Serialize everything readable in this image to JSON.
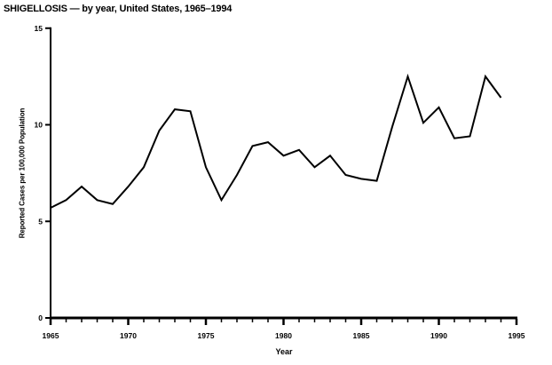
{
  "chart_data": {
    "type": "line",
    "title": "SHIGELLOSIS — by year, United States, 1965–1994",
    "xlabel": "Year",
    "ylabel": "Reported Cases per 100,000 Population",
    "x": [
      1965,
      1966,
      1967,
      1968,
      1969,
      1970,
      1971,
      1972,
      1973,
      1974,
      1975,
      1976,
      1977,
      1978,
      1979,
      1980,
      1981,
      1982,
      1983,
      1984,
      1985,
      1986,
      1987,
      1988,
      1989,
      1990,
      1991,
      1992,
      1993,
      1994
    ],
    "values": [
      5.7,
      6.1,
      6.8,
      6.1,
      5.9,
      6.8,
      7.8,
      9.7,
      10.8,
      10.7,
      7.8,
      6.1,
      7.4,
      8.9,
      9.1,
      8.4,
      8.7,
      7.8,
      8.4,
      7.4,
      7.2,
      7.1,
      9.9,
      12.5,
      10.1,
      10.9,
      9.3,
      9.4,
      12.5,
      11.4
    ],
    "xlim": [
      1965,
      1995
    ],
    "ylim": [
      0,
      15
    ],
    "x_major_ticks": [
      1965,
      1970,
      1975,
      1980,
      1985,
      1990,
      1995
    ],
    "x_major_tick_labels": [
      "1965",
      "1970",
      "1975",
      "1980",
      "1985",
      "1990",
      "1995"
    ],
    "x_minor_tick_interval": 1,
    "y_ticks": [
      0,
      5,
      10,
      15
    ],
    "y_tick_labels": [
      "0",
      "5",
      "10",
      "15"
    ],
    "grid": false,
    "legend": null,
    "line_color": "#000000",
    "axis_color": "#000000",
    "background_color": "#ffffff"
  }
}
